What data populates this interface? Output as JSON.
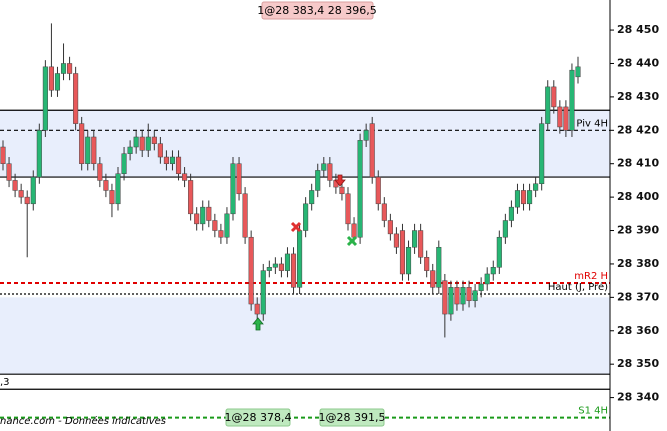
{
  "chart_data": {
    "type": "candlestick",
    "ylim": [
      28330,
      28459
    ],
    "yticks": [
      {
        "value": 28340,
        "label": "28 340"
      },
      {
        "value": 28350,
        "label": "28 350"
      },
      {
        "value": 28360,
        "label": "28 360"
      },
      {
        "value": 28370,
        "label": "28 370"
      },
      {
        "value": 28380,
        "label": "28 380"
      },
      {
        "value": 28390,
        "label": "28 390"
      },
      {
        "value": 28400,
        "label": "28 400"
      },
      {
        "value": 28410,
        "label": "28 410"
      },
      {
        "value": 28420,
        "label": "28 420"
      },
      {
        "value": 28430,
        "label": "28 430"
      },
      {
        "value": 28440,
        "label": "28 440"
      },
      {
        "value": 28450,
        "label": "28 450"
      }
    ],
    "up_color": "#27b674",
    "down_color": "#e8585a",
    "open": [
      28415,
      28410,
      28405,
      28402,
      28400,
      28398,
      28406,
      28420,
      28439,
      28432,
      28437,
      28440,
      28437,
      28422,
      28410,
      28418,
      28410,
      28405,
      28402,
      28398,
      28407,
      28413,
      28415,
      28418,
      28414,
      28418,
      28416,
      28412,
      28410,
      28412,
      28407,
      28405,
      28395,
      28392,
      28397,
      28393,
      28390,
      28388,
      28395,
      28410,
      28401,
      28388,
      28368,
      28365,
      28378,
      28379,
      28380,
      28378,
      28383,
      28373,
      28390,
      28398,
      28402,
      28408,
      28410,
      28405,
      28403,
      28401,
      28392,
      28388,
      28417,
      28422,
      28406,
      28398,
      28393,
      28389,
      28390,
      28377,
      28385,
      28390,
      28382,
      28378,
      28373,
      28375,
      28365,
      28373,
      28368,
      28373,
      28369,
      28372,
      28374,
      28377,
      28379,
      28388,
      28393,
      28397,
      28402,
      28398,
      28402,
      28404,
      28422,
      28433,
      28427,
      28427,
      28420,
      28436
    ],
    "high": [
      28417,
      28412,
      28407,
      28404,
      28402,
      28408,
      28422,
      28441,
      28452,
      28439,
      28446,
      28442,
      28439,
      28424,
      28420,
      28420,
      28412,
      28407,
      28404,
      28409,
      28415,
      28417,
      28420,
      28420,
      28422,
      28420,
      28418,
      28414,
      28414,
      28414,
      28409,
      28407,
      28397,
      28399,
      28399,
      28395,
      28392,
      28397,
      28412,
      28412,
      28403,
      28390,
      28370,
      28380,
      28381,
      28382,
      28382,
      28385,
      28385,
      28392,
      28400,
      28404,
      28410,
      28412,
      28412,
      28407,
      28405,
      28403,
      28394,
      28419,
      28422,
      28424,
      28408,
      28400,
      28395,
      28391,
      28392,
      28387,
      28392,
      28392,
      28384,
      28380,
      28387,
      28377,
      28375,
      28375,
      28375,
      28375,
      28374,
      28376,
      28379,
      28381,
      28390,
      28395,
      28399,
      28404,
      28404,
      28404,
      28406,
      28424,
      28435,
      28435,
      28429,
      28429,
      28440,
      28442
    ],
    "low": [
      28408,
      28403,
      28400,
      28398,
      28382,
      28396,
      28404,
      28418,
      28430,
      28430,
      28435,
      28435,
      28420,
      28408,
      28408,
      28408,
      28403,
      28400,
      28394,
      28396,
      28405,
      28411,
      28413,
      28412,
      28412,
      28414,
      28410,
      28408,
      28408,
      28405,
      28403,
      28393,
      28390,
      28390,
      28391,
      28388,
      28386,
      28386,
      28393,
      28399,
      28386,
      28366,
      28363,
      28363,
      28376,
      28377,
      28376,
      28376,
      28371,
      28371,
      28388,
      28396,
      28400,
      28406,
      28403,
      28401,
      28399,
      28390,
      28386,
      28386,
      28415,
      28404,
      28396,
      28391,
      28387,
      28383,
      28375,
      28375,
      28383,
      28380,
      28376,
      28371,
      28371,
      28358,
      28363,
      28366,
      28366,
      28367,
      28367,
      28370,
      28372,
      28375,
      28377,
      28386,
      28391,
      28395,
      28396,
      28396,
      28400,
      28402,
      28420,
      28425,
      28419,
      28418,
      28418,
      28434
    ],
    "close": [
      28410,
      28405,
      28402,
      28400,
      28398,
      28406,
      28420,
      28439,
      28432,
      28437,
      28440,
      28437,
      28422,
      28410,
      28418,
      28410,
      28405,
      28402,
      28398,
      28407,
      28413,
      28415,
      28418,
      28414,
      28418,
      28416,
      28412,
      28410,
      28412,
      28407,
      28405,
      28395,
      28392,
      28397,
      28393,
      28390,
      28388,
      28395,
      28410,
      28401,
      28388,
      28368,
      28365,
      28378,
      28379,
      28380,
      28378,
      28383,
      28373,
      28390,
      28398,
      28402,
      28408,
      28410,
      28405,
      28403,
      28401,
      28392,
      28388,
      28417,
      28420,
      28406,
      28398,
      28393,
      28389,
      28385,
      28377,
      28385,
      28390,
      28382,
      28378,
      28373,
      28385,
      28365,
      28373,
      28368,
      28373,
      28369,
      28372,
      28374,
      28377,
      28379,
      28388,
      28393,
      28397,
      28402,
      28398,
      28402,
      28404,
      28422,
      28433,
      28427,
      28421,
      28420,
      28438,
      28439
    ],
    "bands": [
      {
        "from": 28406,
        "to": 28426,
        "color": "#e8eefc"
      },
      {
        "from": 28347,
        "to": 28370,
        "color": "#e8eefc"
      }
    ],
    "levels": [
      {
        "value": 28426,
        "color": "#000000",
        "dash": "solid"
      },
      {
        "value": 28406,
        "color": "#000000",
        "dash": "solid"
      },
      {
        "name": "Piv 4H",
        "value": 28420,
        "color": "#000000",
        "dash": "dashed"
      },
      {
        "name": "mR2 H",
        "value": 28374.3,
        "color": "#e00000",
        "dash": "dashed"
      },
      {
        "name": "Haut (J, Pré)",
        "value": 28371,
        "color": "#000000",
        "dash": "dotted"
      },
      {
        "value": 28347,
        "color": "#000000",
        "dash": "solid"
      },
      {
        "value": 28342.5,
        "color": "#000000",
        "dash": "solid"
      },
      {
        "name": "S1 4H",
        "value": 28334,
        "color": "#1a9a1a",
        "dash": "dashed"
      }
    ],
    "annotations": {
      "top": "1@28 383,4 28 396,5",
      "bottom_left": "1@28 378,4",
      "bottom_right": "1@28 391,5",
      "left": ",3",
      "source": "nance.com - Données indicatives"
    }
  }
}
